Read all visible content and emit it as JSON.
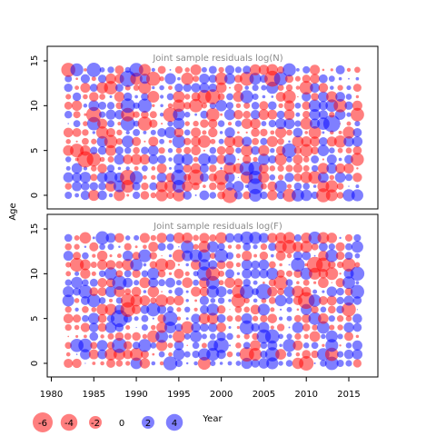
{
  "chart_data": {
    "type": "scatter",
    "subtype": "bubble",
    "ylabel": "Age",
    "xlabel": "Year",
    "xlim": [
      1980,
      2016
    ],
    "ylim": [
      0,
      14
    ],
    "x_ticks": [
      1980,
      1985,
      1990,
      1995,
      2000,
      2005,
      2010,
      2015
    ],
    "y_ticks": [
      0,
      5,
      10,
      15
    ],
    "colors": {
      "negative": "#ff0000",
      "positive": "#0000ff",
      "opacity": 0.5
    },
    "panels": [
      {
        "title": "Joint sample residuals log(N)",
        "seed": 7
      },
      {
        "title": "Joint sample residuals log(F)",
        "seed": 19
      }
    ],
    "legend": {
      "placement": "bottom-left",
      "entries": [
        {
          "label": "-6",
          "value": -6
        },
        {
          "label": "-4",
          "value": -4
        },
        {
          "label": "-2",
          "value": -2
        },
        {
          "label": "0",
          "value": 0
        },
        {
          "label": "2",
          "value": 2
        },
        {
          "label": "4",
          "value": 4
        }
      ]
    }
  }
}
